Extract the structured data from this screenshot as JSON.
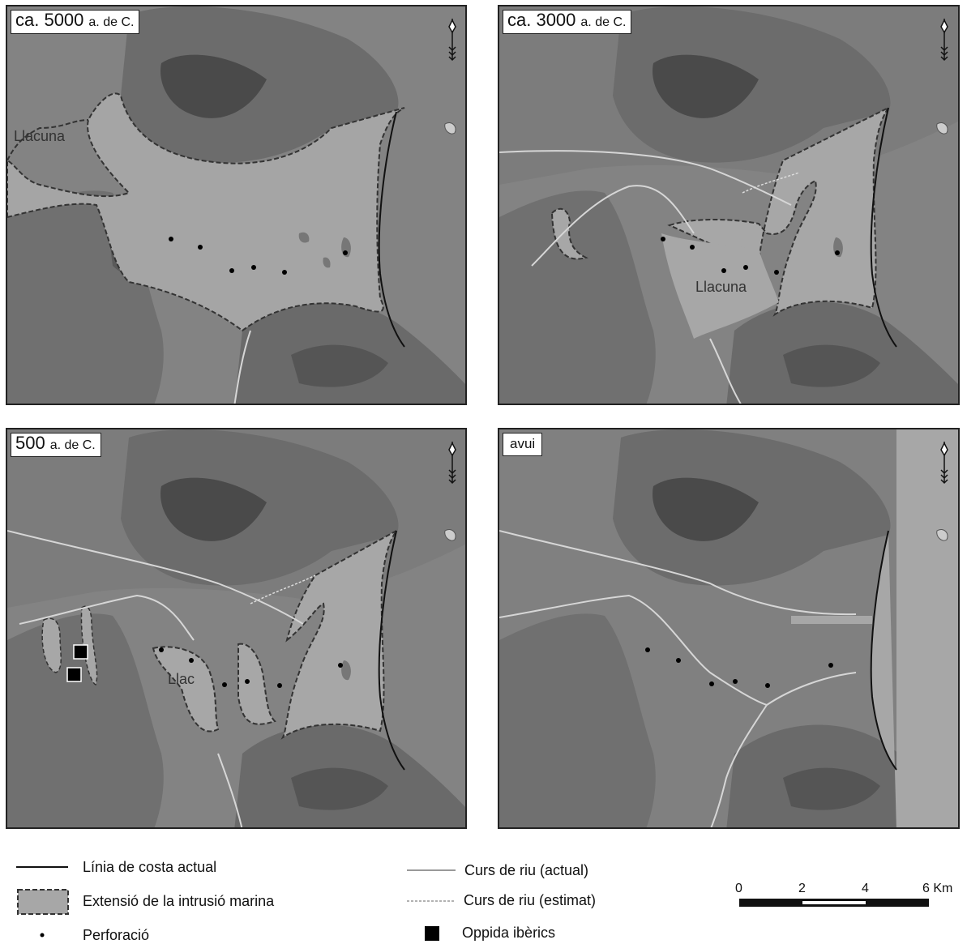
{
  "panels": [
    {
      "label_main": "ca. 5000",
      "label_sub": "a. de C.",
      "lagoon_label": "Llacuna"
    },
    {
      "label_main": "ca. 3000",
      "label_sub": "a. de C.",
      "lagoon_label": "Llacuna"
    },
    {
      "label_main": "500",
      "label_sub": "a. de C.",
      "lagoon_label": "Llac"
    },
    {
      "label_main": "avui",
      "label_sub": "",
      "lagoon_label": ""
    }
  ],
  "legend": {
    "coastline": "Línia de costa actual",
    "intrusion": "Extensió de la intrusió marina",
    "borehole": "Perforació",
    "river_current": "Curs de riu (actual)",
    "river_estimated": "Curs de riu (estimat)",
    "oppida": "Oppida ibèrics"
  },
  "scale": {
    "ticks": [
      "0",
      "2",
      "4",
      "6 Km"
    ]
  },
  "colors": {
    "sea": "#a6a6a6",
    "land": "#7d7d7d",
    "mountain": "#5a5a5a",
    "river": "#d8d8d8"
  },
  "icons": {
    "north": "north-arrow-icon",
    "borehole": "dot-icon",
    "oppida": "square-icon"
  }
}
